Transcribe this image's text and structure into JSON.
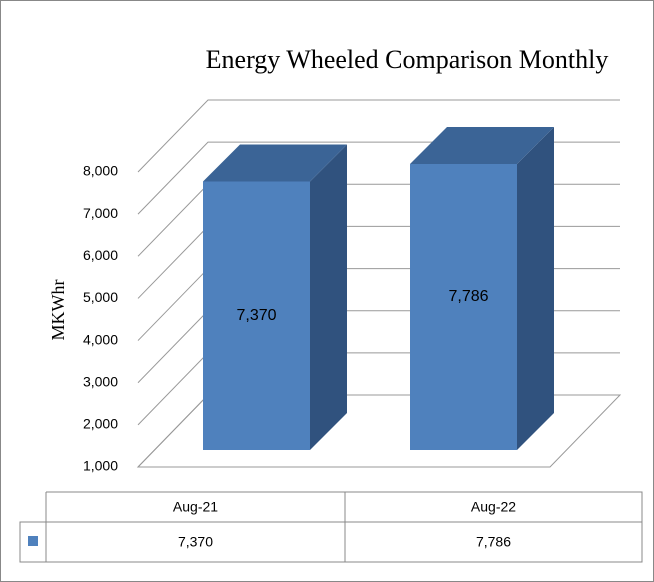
{
  "chart_data": {
    "type": "bar3d",
    "title": "Energy Wheeled Comparison  Monthly",
    "y_label": "MKWhr",
    "categories": [
      "Aug-21",
      "Aug-22"
    ],
    "values": [
      7370,
      7786
    ],
    "value_labels": [
      "7,370",
      "7,786"
    ],
    "color": "#4f81bd",
    "ylim": [
      1000,
      8000
    ],
    "yticks": [
      {
        "value": 1000,
        "label": "1,000"
      },
      {
        "value": 2000,
        "label": "2,000"
      },
      {
        "value": 3000,
        "label": "3,000"
      },
      {
        "value": 4000,
        "label": "4,000"
      },
      {
        "value": 5000,
        "label": "5,000"
      },
      {
        "value": 6000,
        "label": "6,000"
      },
      {
        "value": 7000,
        "label": "7,000"
      },
      {
        "value": 8000,
        "label": "8,000"
      }
    ],
    "grid": true,
    "data_table": true
  }
}
